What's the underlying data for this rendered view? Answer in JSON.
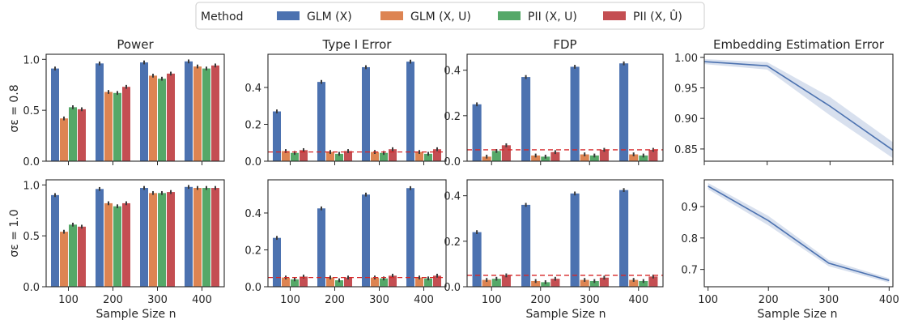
{
  "legend": {
    "title": "Method",
    "items": [
      {
        "label": "GLM (X)",
        "color": "#4c72b0"
      },
      {
        "label": "GLM (X, U)",
        "color": "#dd8452"
      },
      {
        "label": "PII (X, U)",
        "color": "#55a868"
      },
      {
        "label": "PII (X, Û)",
        "color": "#c44e52"
      }
    ]
  },
  "row_labels": [
    "σε = 0.8",
    "σε = 1.0"
  ],
  "shared_xlabel": "Sample Size n",
  "chart_data": [
    {
      "type": "bar",
      "title": "Power",
      "row": 1,
      "categories": [
        "100",
        "200",
        "300",
        "400"
      ],
      "ylim": [
        0,
        1.05
      ],
      "yticks": [
        0.0,
        0.5,
        1.0
      ],
      "series": [
        {
          "name": "GLM (X)",
          "values": [
            0.91,
            0.96,
            0.97,
            0.98
          ]
        },
        {
          "name": "GLM (X, U)",
          "values": [
            0.42,
            0.68,
            0.84,
            0.93
          ]
        },
        {
          "name": "PII (X, U)",
          "values": [
            0.53,
            0.67,
            0.81,
            0.91
          ]
        },
        {
          "name": "PII (X, Û)",
          "values": [
            0.51,
            0.73,
            0.86,
            0.94
          ]
        }
      ]
    },
    {
      "type": "bar",
      "title": "Type I Error",
      "row": 1,
      "categories": [
        "100",
        "200",
        "300",
        "400"
      ],
      "ylim": [
        0,
        0.58
      ],
      "yticks": [
        0.0,
        0.2,
        0.4
      ],
      "reference_line": 0.05,
      "series": [
        {
          "name": "GLM (X)",
          "values": [
            0.27,
            0.43,
            0.51,
            0.54
          ]
        },
        {
          "name": "GLM (X, U)",
          "values": [
            0.055,
            0.05,
            0.05,
            0.05
          ]
        },
        {
          "name": "PII (X, U)",
          "values": [
            0.045,
            0.04,
            0.045,
            0.04
          ]
        },
        {
          "name": "PII (X, Û)",
          "values": [
            0.06,
            0.055,
            0.065,
            0.065
          ]
        }
      ]
    },
    {
      "type": "bar",
      "title": "FDP",
      "row": 1,
      "categories": [
        "100",
        "200",
        "300",
        "400"
      ],
      "ylim": [
        0,
        0.47
      ],
      "yticks": [
        0.0,
        0.2,
        0.4
      ],
      "reference_line": 0.05,
      "series": [
        {
          "name": "GLM (X)",
          "values": [
            0.25,
            0.37,
            0.415,
            0.43
          ]
        },
        {
          "name": "GLM (X, U)",
          "values": [
            0.02,
            0.025,
            0.03,
            0.03
          ]
        },
        {
          "name": "PII (X, U)",
          "values": [
            0.045,
            0.02,
            0.025,
            0.025
          ]
        },
        {
          "name": "PII (X, Û)",
          "values": [
            0.07,
            0.04,
            0.05,
            0.05
          ]
        }
      ]
    },
    {
      "type": "line",
      "title": "Embedding Estimation Error",
      "row": 1,
      "x": [
        100,
        200,
        300,
        400
      ],
      "ylim": [
        0.83,
        1.005
      ],
      "yticks": [
        0.85,
        0.9,
        0.95,
        1.0
      ],
      "series": [
        {
          "values": [
            0.993,
            0.986,
            0.92,
            0.848
          ],
          "lower": [
            0.989,
            0.98,
            0.905,
            0.835
          ],
          "upper": [
            0.997,
            0.992,
            0.935,
            0.861
          ]
        }
      ]
    },
    {
      "type": "bar",
      "row": 2,
      "categories": [
        "100",
        "200",
        "300",
        "400"
      ],
      "ylim": [
        0,
        1.05
      ],
      "yticks": [
        0.0,
        0.5,
        1.0
      ],
      "series": [
        {
          "name": "GLM (X)",
          "values": [
            0.9,
            0.96,
            0.97,
            0.98
          ]
        },
        {
          "name": "GLM (X, U)",
          "values": [
            0.54,
            0.82,
            0.92,
            0.97
          ]
        },
        {
          "name": "PII (X, U)",
          "values": [
            0.61,
            0.79,
            0.92,
            0.97
          ]
        },
        {
          "name": "PII (X, Û)",
          "values": [
            0.59,
            0.82,
            0.93,
            0.97
          ]
        }
      ]
    },
    {
      "type": "bar",
      "row": 2,
      "categories": [
        "100",
        "200",
        "300",
        "400"
      ],
      "ylim": [
        0,
        0.58
      ],
      "yticks": [
        0.0,
        0.2,
        0.4
      ],
      "reference_line": 0.05,
      "series": [
        {
          "name": "GLM (X)",
          "values": [
            0.265,
            0.425,
            0.5,
            0.535
          ]
        },
        {
          "name": "GLM (X, U)",
          "values": [
            0.05,
            0.05,
            0.05,
            0.05
          ]
        },
        {
          "name": "PII (X, U)",
          "values": [
            0.04,
            0.035,
            0.045,
            0.045
          ]
        },
        {
          "name": "PII (X, Û)",
          "values": [
            0.055,
            0.05,
            0.06,
            0.06
          ]
        }
      ]
    },
    {
      "type": "bar",
      "row": 2,
      "categories": [
        "100",
        "200",
        "300",
        "400"
      ],
      "ylim": [
        0,
        0.47
      ],
      "yticks": [
        0.0,
        0.2,
        0.4
      ],
      "reference_line": 0.05,
      "series": [
        {
          "name": "GLM (X)",
          "values": [
            0.24,
            0.36,
            0.41,
            0.425
          ]
        },
        {
          "name": "GLM (X, U)",
          "values": [
            0.03,
            0.025,
            0.03,
            0.03
          ]
        },
        {
          "name": "PII (X, U)",
          "values": [
            0.035,
            0.02,
            0.025,
            0.025
          ]
        },
        {
          "name": "PII (X, Û)",
          "values": [
            0.05,
            0.035,
            0.04,
            0.045
          ]
        }
      ]
    },
    {
      "type": "line",
      "row": 2,
      "x": [
        100,
        200,
        300,
        400
      ],
      "xlim": [
        100,
        400
      ],
      "ylim": [
        0.645,
        0.985
      ],
      "yticks": [
        0.7,
        0.8,
        0.9
      ],
      "series": [
        {
          "values": [
            0.965,
            0.855,
            0.72,
            0.665
          ],
          "lower": [
            0.955,
            0.84,
            0.71,
            0.658
          ],
          "upper": [
            0.975,
            0.87,
            0.73,
            0.672
          ]
        }
      ]
    }
  ]
}
